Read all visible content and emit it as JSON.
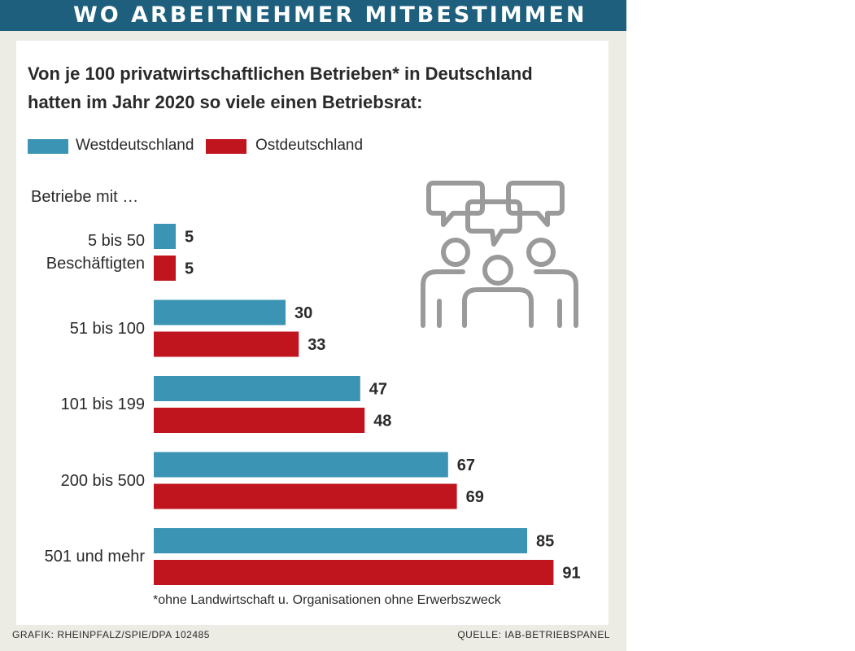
{
  "banner_title": "WO ARBEITNEHMER MITBESTIMMEN",
  "headline_line1": "Von je 100 privatwirtschaftlichen Betrieben* in Deutschland",
  "headline_line2": "hatten im Jahr 2020 so viele einen Betriebsrat:",
  "group_label": "Betriebe mit …",
  "footnote": "*ohne Landwirtschaft u. Organisationen ohne Erwerbszweck",
  "credit_left": "GRAFIK: RHEINPFALZ/SPIE/DPA 102485",
  "credit_right": "QUELLE: IAB-BETRIEBSPANEL",
  "icon": "people-discussion-icon",
  "colors": {
    "west": "#3b94b3",
    "east": "#c0151f",
    "banner": "#1e5f7d",
    "icon": "#9a9a9a"
  },
  "chart_data": {
    "type": "bar",
    "orientation": "horizontal",
    "title": "Von je 100 privatwirtschaftlichen Betrieben* in Deutschland hatten im Jahr 2020 so viele einen Betriebsrat:",
    "xlim": [
      0,
      100
    ],
    "grid": false,
    "legend_position": "top-left",
    "categories": [
      "5 bis 50 Beschäftigten",
      "51 bis 100",
      "101 bis 199",
      "200 bis 500",
      "501 und mehr"
    ],
    "category_lines": [
      [
        "5 bis 50",
        "Beschäftigten"
      ],
      [
        "51 bis 100"
      ],
      [
        "101 bis 199"
      ],
      [
        "200 bis 500"
      ],
      [
        "501 und mehr"
      ]
    ],
    "series": [
      {
        "name": "Westdeutschland",
        "color": "#3b94b3",
        "values": [
          5,
          30,
          47,
          67,
          85
        ]
      },
      {
        "name": "Ostdeutschland",
        "color": "#c0151f",
        "values": [
          5,
          33,
          48,
          69,
          91
        ]
      }
    ]
  }
}
